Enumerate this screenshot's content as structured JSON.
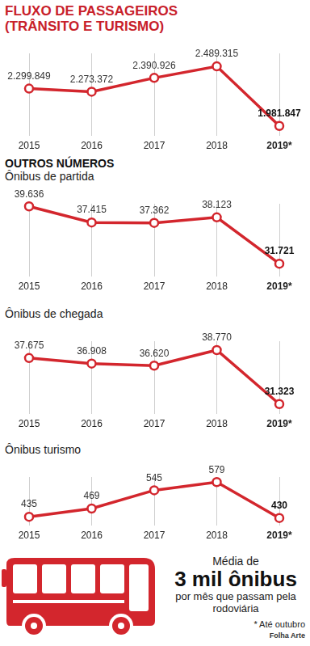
{
  "chart_data": [
    {
      "type": "line",
      "title": "FLUXO DE PASSAGEIROS (TRÂNSITO E TURISMO)",
      "categories": [
        "2015",
        "2016",
        "2017",
        "2018",
        "2019*"
      ],
      "values": [
        2299849,
        2273372,
        2390926,
        2489315,
        1981847
      ],
      "value_labels": [
        "2.299.849",
        "2.273.372",
        "2.390.926",
        "2.489.315",
        "1.981.847"
      ],
      "color": "#d3262d",
      "marker": "circle",
      "line_style": "solid",
      "data_labels": true,
      "grid": true,
      "tick_labels": "x"
    },
    {
      "type": "line",
      "subtitle": "Ônibus de partida",
      "categories": [
        "2015",
        "2016",
        "2017",
        "2018",
        "2019*"
      ],
      "values": [
        39636,
        37415,
        37362,
        38123,
        31721
      ],
      "value_labels": [
        "39.636",
        "37.415",
        "37.362",
        "38.123",
        "31.721"
      ],
      "color": "#d3262d",
      "marker": "circle",
      "line_style": "solid",
      "data_labels": true,
      "grid": true,
      "tick_labels": "x"
    },
    {
      "type": "line",
      "subtitle": "Ônibus de chegada",
      "categories": [
        "2015",
        "2016",
        "2017",
        "2018",
        "2019*"
      ],
      "values": [
        37675,
        36908,
        36620,
        38770,
        31323
      ],
      "value_labels": [
        "37.675",
        "36.908",
        "36.620",
        "38.770",
        "31.323"
      ],
      "color": "#d3262d",
      "marker": "circle",
      "line_style": "solid",
      "data_labels": true,
      "grid": true,
      "tick_labels": "x"
    },
    {
      "type": "line",
      "subtitle": "Ônibus turismo",
      "categories": [
        "2015",
        "2016",
        "2017",
        "2018",
        "2019*"
      ],
      "values": [
        435,
        469,
        545,
        579,
        430
      ],
      "color": "#d3262d",
      "marker": "circle",
      "line_style": "solid",
      "data_labels": true,
      "grid": true,
      "tick_labels": "x"
    }
  ],
  "section_title": "OUTROS NÚMEROS",
  "callout": [
    "Média de",
    "3 mil ônibus",
    "por mês que passam pela rodoviária"
  ],
  "note": "* Até outubro",
  "source": "Folha Arte"
}
